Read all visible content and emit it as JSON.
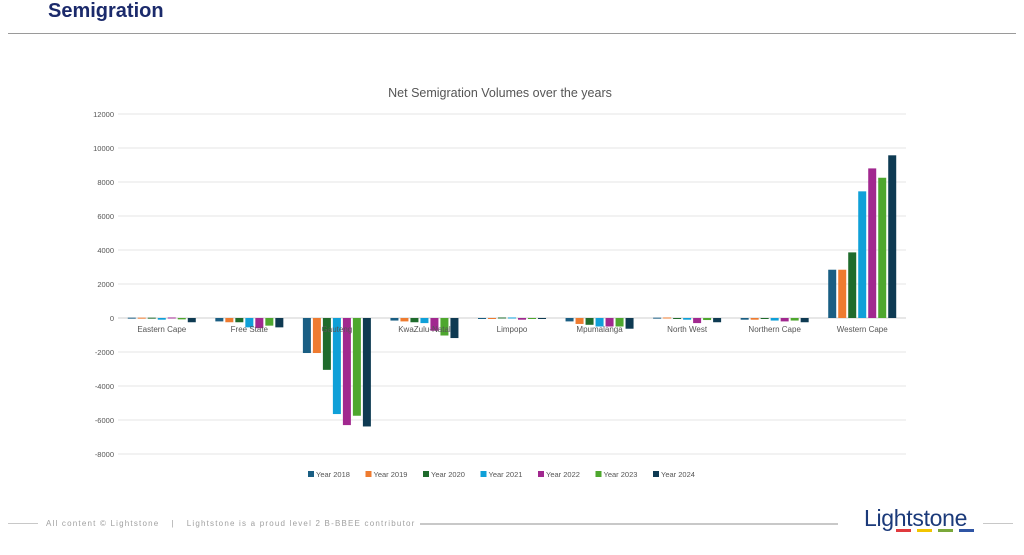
{
  "header": {
    "title": "Semigration"
  },
  "footer": {
    "copyright": "All content © Lightstone",
    "separator": "|",
    "bbbee": "Lightstone is a proud level 2 B-BBEE contributor",
    "logo_text": "Lightstone",
    "logo_colors": [
      "#e03a3e",
      "#f2c500",
      "#7aa83a",
      "#2f55a4"
    ]
  },
  "chart_data": {
    "type": "bar",
    "title": "Net Semigration Volumes over the years",
    "xlabel": "",
    "ylabel": "",
    "ylim": [
      -8000,
      12000
    ],
    "yticks": [
      12000,
      10000,
      8000,
      6000,
      4000,
      2000,
      0,
      -2000,
      -4000,
      -6000,
      -8000
    ],
    "grid": true,
    "legend_position": "bottom",
    "categories": [
      "Eastern Cape",
      "Free State",
      "Gauteng",
      "KwaZulu-Natal",
      "Limpopo",
      "Mpumalanga",
      "North West",
      "Northern Cape",
      "Western Cape"
    ],
    "series": [
      {
        "name": "Year 2018",
        "color": "#1a5e83",
        "values": [
          20,
          -200,
          -2060,
          -150,
          -50,
          -200,
          20,
          -100,
          2840
        ]
      },
      {
        "name": "Year 2019",
        "color": "#ee7b30",
        "values": [
          20,
          -250,
          -2060,
          -200,
          -50,
          -350,
          30,
          -100,
          2840
        ]
      },
      {
        "name": "Year 2020",
        "color": "#1f6b2c",
        "values": [
          20,
          -250,
          -3050,
          -250,
          30,
          -400,
          0,
          0,
          3860
        ]
      },
      {
        "name": "Year 2021",
        "color": "#0fa0d8",
        "values": [
          -100,
          -550,
          -5650,
          -300,
          30,
          -500,
          -100,
          -150,
          7450
        ]
      },
      {
        "name": "Year 2022",
        "color": "#a1288f",
        "values": [
          30,
          -600,
          -6300,
          -750,
          -100,
          -500,
          -300,
          -200,
          8800
        ]
      },
      {
        "name": "Year 2023",
        "color": "#4ea72e",
        "values": [
          -80,
          -450,
          -5750,
          -1030,
          -50,
          -500,
          -120,
          -150,
          8250
        ]
      },
      {
        "name": "Year 2024",
        "color": "#0e3a52",
        "values": [
          -250,
          -550,
          -6380,
          -1180,
          -50,
          -630,
          -250,
          -250,
          9570
        ]
      }
    ]
  }
}
